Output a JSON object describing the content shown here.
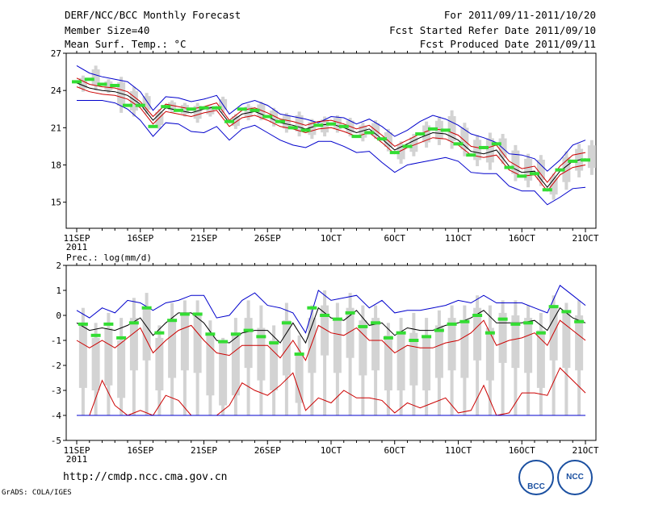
{
  "header": {
    "title": "DERF/NCC/BCC Monthly Forecast",
    "member_size": "Member Size=40",
    "variable": "Mean Surf. Temp.: °C",
    "period": "For 2011/09/11-2011/10/20",
    "start_date": "Fcst Started Refer Date 2011/09/10",
    "produced_date": "Fcst Produced Date 2011/09/11"
  },
  "footer": {
    "url": "http://cmdp.ncc.cma.gov.cn",
    "credit": "GrADS: COLA/IGES",
    "logo_left_text": "BCC",
    "logo_right_text": "NCC"
  },
  "colors": {
    "envelope": "#0000cc",
    "band": "#cc0000",
    "mean": "#000000",
    "box": "#d3d3d3",
    "median": "#33dd33"
  },
  "chart_data": [
    {
      "type": "line",
      "title": "Mean Surf. Temp.: °C",
      "x_ticks": [
        "11SEP",
        "16SEP",
        "21SEP",
        "26SEP",
        "1OCT",
        "6OCT",
        "11OCT",
        "16OCT",
        "21OCT"
      ],
      "x_tick_days": [
        0,
        5,
        10,
        15,
        20,
        25,
        30,
        35,
        40
      ],
      "x_year_label": "2011",
      "days": 40,
      "ylim": [
        12.9,
        27
      ],
      "y_ticks": [
        15,
        18,
        21,
        24,
        27
      ],
      "series": [
        {
          "name": "max",
          "values": [
            26.0,
            25.4,
            25.1,
            24.9,
            24.7,
            23.9,
            22.4,
            23.5,
            23.4,
            23.1,
            23.3,
            23.6,
            22.1,
            22.9,
            23.2,
            22.8,
            22.1,
            21.9,
            21.7,
            21.4,
            21.9,
            21.8,
            21.3,
            21.7,
            21.1,
            20.3,
            20.8,
            21.5,
            22.0,
            21.7,
            21.2,
            20.5,
            20.2,
            19.8,
            18.9,
            18.8,
            18.5,
            17.5,
            18.4,
            19.6,
            20.0
          ]
        },
        {
          "name": "upper",
          "values": [
            25.0,
            24.5,
            24.3,
            24.2,
            23.9,
            23.1,
            21.9,
            22.9,
            22.7,
            22.5,
            22.7,
            23.0,
            21.6,
            22.4,
            22.6,
            22.2,
            21.7,
            21.5,
            21.2,
            21.5,
            21.6,
            21.3,
            20.9,
            21.2,
            20.4,
            19.5,
            20.0,
            20.5,
            20.9,
            20.8,
            20.4,
            19.5,
            19.3,
            19.6,
            18.3,
            17.7,
            17.9,
            16.6,
            17.9,
            18.8,
            19.0
          ]
        },
        {
          "name": "mean",
          "values": [
            24.6,
            24.2,
            24.0,
            23.9,
            23.6,
            22.9,
            21.6,
            22.6,
            22.4,
            22.2,
            22.5,
            22.7,
            21.4,
            22.1,
            22.3,
            21.9,
            21.4,
            21.2,
            20.9,
            21.2,
            21.3,
            21.0,
            20.6,
            20.9,
            20.1,
            19.2,
            19.7,
            20.2,
            20.6,
            20.5,
            20.0,
            19.1,
            18.9,
            19.2,
            17.9,
            17.4,
            17.5,
            16.2,
            17.5,
            18.3,
            18.5
          ]
        },
        {
          "name": "lower",
          "values": [
            24.3,
            23.9,
            23.7,
            23.6,
            23.3,
            22.6,
            21.3,
            22.3,
            22.1,
            21.9,
            22.2,
            22.4,
            21.1,
            21.8,
            22.0,
            21.6,
            21.1,
            20.9,
            20.6,
            20.9,
            21.0,
            20.7,
            20.3,
            20.6,
            19.8,
            18.9,
            19.4,
            19.8,
            20.2,
            20.1,
            19.6,
            18.8,
            18.6,
            18.8,
            17.6,
            17.1,
            17.2,
            15.9,
            17.2,
            17.8,
            18.0
          ]
        },
        {
          "name": "min",
          "values": [
            23.2,
            23.2,
            23.2,
            23.0,
            22.5,
            21.6,
            20.3,
            21.4,
            21.3,
            20.7,
            20.6,
            21.1,
            20.0,
            20.9,
            21.2,
            20.6,
            20.0,
            19.6,
            19.4,
            19.9,
            19.9,
            19.5,
            19.0,
            19.1,
            18.2,
            17.4,
            18.0,
            18.2,
            18.4,
            18.6,
            18.3,
            17.4,
            17.3,
            17.3,
            16.3,
            15.9,
            15.9,
            14.8,
            15.4,
            16.1,
            16.2
          ]
        }
      ],
      "median": [
        24.7,
        24.9,
        24.5,
        24.4,
        22.8,
        22.8,
        21.1,
        22.7,
        22.4,
        22.5,
        22.6,
        22.6,
        21.5,
        22.5,
        22.4,
        21.9,
        21.5,
        21.0,
        20.8,
        21.2,
        21.3,
        21.1,
        20.3,
        20.6,
        20.1,
        19.0,
        19.5,
        20.5,
        20.9,
        20.8,
        19.7,
        18.8,
        19.4,
        19.7,
        17.8,
        17.1,
        17.3,
        16.0,
        17.6,
        18.3,
        18.4
      ],
      "box_low": [
        23.9,
        24.0,
        23.8,
        22.2,
        21.9,
        22.1,
        20.9,
        22.2,
        21.9,
        21.4,
        21.9,
        22.2,
        20.9,
        21.6,
        21.6,
        21.1,
        20.6,
        20.3,
        20.1,
        20.3,
        20.6,
        20.3,
        19.9,
        20.1,
        19.1,
        18.1,
        18.7,
        19.4,
        19.6,
        19.3,
        18.7,
        17.9,
        17.6,
        18.1,
        16.7,
        16.2,
        16.3,
        15.2,
        16.0,
        17.0,
        17.2
      ],
      "box_high": [
        25.2,
        26.0,
        24.9,
        25.1,
        24.3,
        23.8,
        22.5,
        23.2,
        23.0,
        23.0,
        22.8,
        23.5,
        22.1,
        22.9,
        23.1,
        22.6,
        22.2,
        22.3,
        21.7,
        21.9,
        22.0,
        21.8,
        21.4,
        21.6,
        20.9,
        19.9,
        20.5,
        21.5,
        21.9,
        22.4,
        21.4,
        20.4,
        20.6,
        20.5,
        19.6,
        18.9,
        18.8,
        17.3,
        19.1,
        19.7,
        20.0
      ]
    },
    {
      "type": "line",
      "title": "Prec.: log(mm/d)",
      "x_ticks": [
        "11SEP",
        "16SEP",
        "21SEP",
        "26SEP",
        "1OCT",
        "6OCT",
        "11OCT",
        "16OCT",
        "21OCT"
      ],
      "x_tick_days": [
        0,
        5,
        10,
        15,
        20,
        25,
        30,
        35,
        40
      ],
      "x_year_label": "2011",
      "days": 40,
      "ylim": [
        -5,
        2
      ],
      "y_ticks": [
        -5,
        -4,
        -3,
        -2,
        -1,
        0,
        1,
        2
      ],
      "series": [
        {
          "name": "max",
          "values": [
            0.2,
            -0.1,
            0.3,
            0.1,
            0.6,
            0.5,
            0.2,
            0.5,
            0.6,
            0.8,
            0.8,
            -0.1,
            0.0,
            0.6,
            0.9,
            0.4,
            0.3,
            0.1,
            -0.7,
            1.0,
            0.6,
            0.7,
            0.8,
            0.3,
            0.6,
            0.1,
            0.2,
            0.2,
            0.3,
            0.4,
            0.6,
            0.5,
            0.8,
            0.5,
            0.5,
            0.5,
            0.3,
            0.1,
            1.2,
            0.8,
            0.4
          ]
        },
        {
          "name": "mean",
          "values": [
            -0.3,
            -0.6,
            -0.5,
            -0.6,
            -0.4,
            -0.1,
            -0.8,
            -0.3,
            0.1,
            0.1,
            -0.3,
            -1.0,
            -1.1,
            -0.7,
            -0.6,
            -0.6,
            -1.1,
            -0.3,
            -1.1,
            0.3,
            -0.1,
            -0.2,
            0.2,
            -0.4,
            -0.3,
            -0.8,
            -0.5,
            -0.6,
            -0.6,
            -0.4,
            -0.3,
            -0.1,
            0.2,
            -0.3,
            -0.3,
            -0.3,
            -0.2,
            -0.6,
            0.3,
            -0.1,
            -0.3
          ]
        },
        {
          "name": "upper",
          "values": [
            -1.0,
            -1.3,
            -1.0,
            -1.3,
            -0.9,
            -0.5,
            -1.5,
            -1.0,
            -0.6,
            -0.4,
            -1.0,
            -1.5,
            -1.6,
            -1.2,
            -1.2,
            -1.2,
            -1.7,
            -1.0,
            -1.8,
            -0.4,
            -0.7,
            -0.8,
            -0.5,
            -1.0,
            -1.0,
            -1.5,
            -1.2,
            -1.3,
            -1.3,
            -1.1,
            -1.0,
            -0.7,
            -0.2,
            -1.2,
            -1.0,
            -0.9,
            -0.7,
            -1.2,
            -0.2,
            -0.6,
            -1.0
          ]
        },
        {
          "name": "lower",
          "values": [
            -4.0,
            -4.0,
            -2.6,
            -3.6,
            -4.0,
            -3.8,
            -4.0,
            -3.2,
            -3.4,
            -4.0,
            -4.0,
            -4.0,
            -3.6,
            -2.7,
            -3.0,
            -3.2,
            -2.8,
            -2.3,
            -3.8,
            -3.3,
            -3.5,
            -3.0,
            -3.3,
            -3.3,
            -3.4,
            -3.9,
            -3.5,
            -3.7,
            -3.5,
            -3.3,
            -3.9,
            -3.8,
            -2.8,
            -4.0,
            -3.9,
            -3.1,
            -3.1,
            -3.2,
            -2.1,
            -2.6,
            -3.1
          ]
        },
        {
          "name": "min",
          "values": [
            -4.0,
            -4.0,
            -4.0,
            -4.0,
            -4.0,
            -4.0,
            -4.0,
            -4.0,
            -4.0,
            -4.0,
            -4.0,
            -4.0,
            -4.0,
            -4.0,
            -4.0,
            -4.0,
            -4.0,
            -4.0,
            -4.0,
            -4.0,
            -4.0,
            -4.0,
            -4.0,
            -4.0,
            -4.0,
            -4.0,
            -4.0,
            -4.0,
            -4.0,
            -4.0,
            -4.0,
            -4.0,
            -4.0,
            -4.0,
            -4.0,
            -4.0,
            -4.0,
            -4.0,
            -4.0,
            -4.0,
            -4.0
          ]
        },
        {
          "name": "median",
          "values": [
            -0.35,
            -0.8,
            -0.35,
            -0.9,
            -0.3,
            0.3,
            -0.7,
            -0.2,
            0.05,
            0.05,
            -0.75,
            -1.05,
            -0.75,
            -0.6,
            -0.85,
            -1.1,
            -0.3,
            -1.55,
            0.3,
            0.0,
            -0.15,
            0.1,
            -0.45,
            -0.3,
            -0.9,
            -0.7,
            -1.0,
            -0.85,
            -0.6,
            -0.35,
            -0.25,
            0.0,
            -0.7,
            -0.15,
            -0.35,
            -0.3,
            -0.7,
            0.35,
            0.15,
            -0.25
          ]
        }
      ],
      "box_low": [
        -4.0,
        -4.0,
        -4.0,
        -4.0,
        -4.0,
        -4.0,
        -4.0,
        -4.0,
        -4.0,
        -4.0,
        -4.0,
        -4.0,
        -4.0,
        -4.0,
        -4.0,
        -4.0,
        -4.0,
        -4.0,
        -4.0,
        -4.0,
        -4.0,
        -4.0,
        -4.0,
        -4.0,
        -4.0,
        -4.0,
        -4.0,
        -4.0,
        -4.0,
        -4.0,
        -4.0,
        -4.0,
        -4.0,
        -4.0,
        -4.0,
        -4.0,
        -4.0,
        -4.0,
        -4.0,
        -4.0
      ],
      "box_high": [
        0.3,
        -0.3,
        0.1,
        -0.1,
        0.7,
        0.9,
        -0.4,
        0.5,
        0.6,
        0.6,
        -0.2,
        -0.9,
        -0.1,
        0.6,
        0.4,
        -0.4,
        0.5,
        -0.8,
        0.4,
        1.0,
        0.5,
        0.9,
        0.4,
        0.4,
        -0.3,
        -0.1,
        0.1,
        -0.1,
        0.2,
        0.4,
        0.4,
        0.8,
        0.4,
        0.6,
        0.6,
        0.4,
        0.1,
        0.8,
        0.5,
        0.6
      ],
      "box_w_low": [
        -2.9,
        -3.0,
        -2.8,
        -3.3,
        -2.2,
        -1.8,
        -3.0,
        -2.5,
        -2.2,
        -2.3,
        -3.2,
        -3.6,
        -3.2,
        -2.1,
        -2.6,
        -3.0,
        -2.4,
        -3.5,
        -2.3,
        -1.6,
        -2.3,
        -1.7,
        -2.4,
        -2.2,
        -3.0,
        -3.0,
        -2.8,
        -3.0,
        -2.5,
        -2.2,
        -2.5,
        -1.8,
        -2.6,
        -1.9,
        -2.1,
        -2.3,
        -2.9,
        -1.8,
        -2.1,
        -2.2
      ],
      "box_w_high": [
        -0.4,
        -0.9,
        -0.5,
        -1.0,
        -0.1,
        0.3,
        -0.9,
        -0.2,
        0.0,
        0.0,
        -0.8,
        -1.1,
        -0.8,
        -0.1,
        -0.5,
        -1.0,
        -0.2,
        -1.5,
        -0.1,
        0.4,
        -0.1,
        0.3,
        -0.2,
        -0.1,
        -0.8,
        -0.7,
        -0.7,
        -0.8,
        -0.4,
        -0.1,
        -0.2,
        0.3,
        -0.5,
        0.1,
        0.0,
        -0.1,
        -0.6,
        0.3,
        0.1,
        0.0
      ]
    }
  ]
}
